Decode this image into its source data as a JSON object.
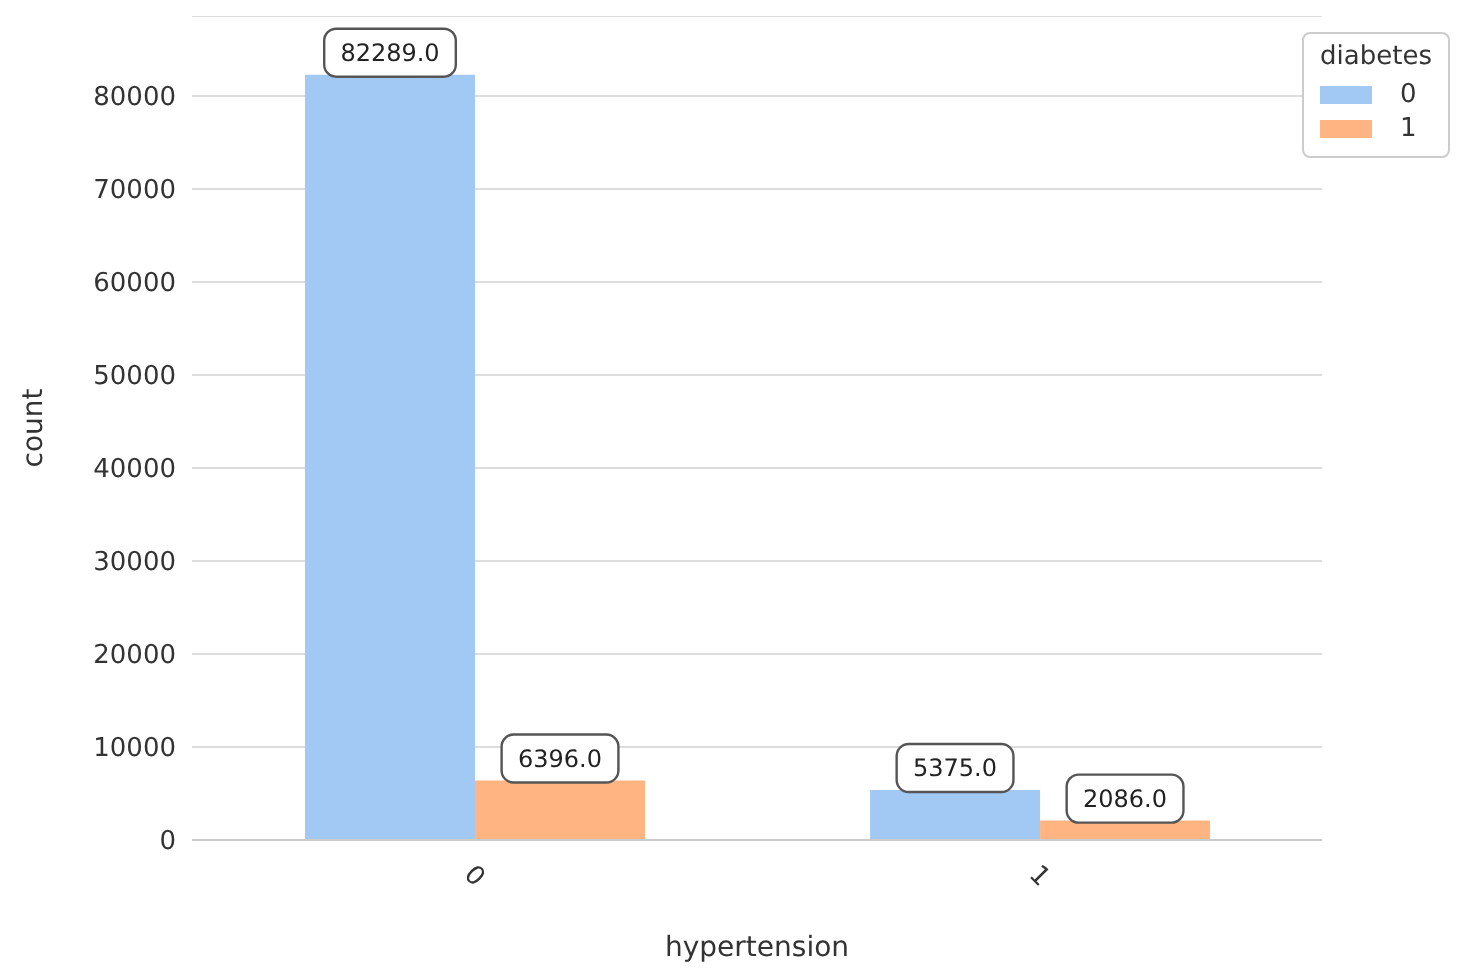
{
  "chart_data": {
    "type": "bar",
    "xlabel": "hypertension",
    "ylabel": "count",
    "legend_title": "diabetes",
    "categories": [
      "0",
      "1"
    ],
    "series": [
      {
        "name": "0",
        "color": "#a1c9f4",
        "values": [
          82289,
          5375
        ],
        "value_labels": [
          "82289.0",
          "5375.0"
        ]
      },
      {
        "name": "1",
        "color": "#ffb482",
        "values": [
          6396,
          2086
        ],
        "value_labels": [
          "6396.0",
          "2086.0"
        ]
      }
    ],
    "ylim": [
      0,
      88600
    ],
    "yticks": [
      0,
      10000,
      20000,
      30000,
      40000,
      50000,
      60000,
      70000,
      80000
    ],
    "grid": "y",
    "legend": "top right"
  }
}
